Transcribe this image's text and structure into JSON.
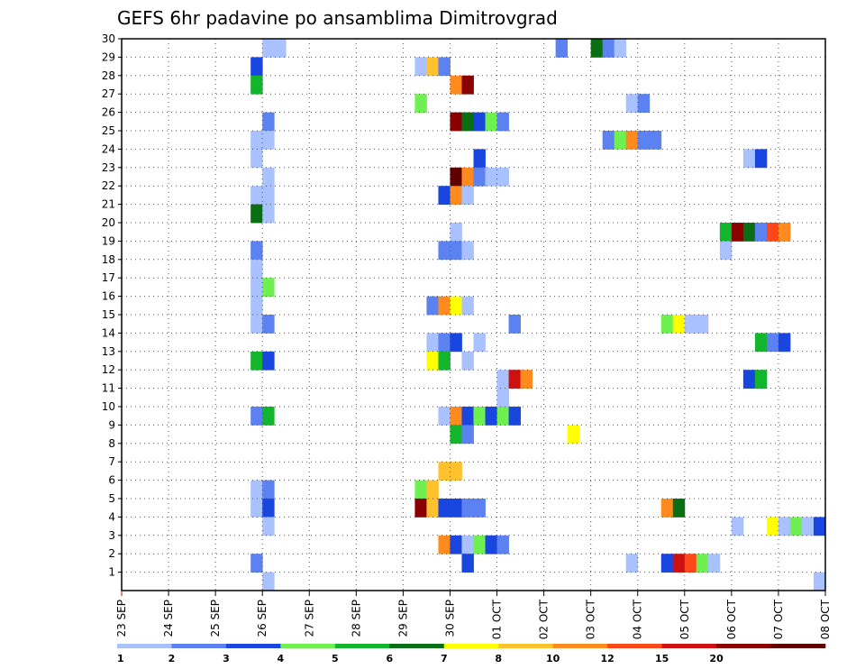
{
  "chart_data": {
    "type": "heatmap",
    "title": "GEFS 6hr padavine po ansamblima Dimitrovgrad",
    "x_tick_labels": [
      "23 SEP",
      "24 SEP",
      "25 SEP",
      "26 SEP",
      "27 SEP",
      "28 SEP",
      "29 SEP",
      "30 SEP",
      "01 OCT",
      "02 OCT",
      "03 OCT",
      "04 OCT",
      "05 OCT",
      "06 OCT",
      "07 OCT",
      "08 OCT"
    ],
    "y_tick_labels": [
      "1",
      "2",
      "3",
      "4",
      "5",
      "6",
      "7",
      "8",
      "9",
      "10",
      "11",
      "12",
      "13",
      "14",
      "15",
      "16",
      "17",
      "18",
      "19",
      "20",
      "21",
      "22",
      "23",
      "24",
      "25",
      "26",
      "27",
      "28",
      "29",
      "30"
    ],
    "x_unit": "6-hour step (4 steps per day, day 0 = 23 SEP)",
    "y_unit": "ensemble member",
    "ylim": [
      0,
      30
    ],
    "grid": true,
    "colorbar": {
      "placement": "bottom",
      "labels": [
        "1",
        "2",
        "3",
        "4",
        "5",
        "6",
        "7",
        "8",
        "10",
        "12",
        "15",
        "20"
      ],
      "colors": [
        "#a9c2ff",
        "#5b82f0",
        "#1a46e0",
        "#6ef050",
        "#12b52b",
        "#0a6e14",
        "#ffff00",
        "#ffc22e",
        "#ff8a1e",
        "#ff4718",
        "#d01010",
        "#8a0000",
        "#5e0000"
      ]
    },
    "cells": [
      [
        12,
        29,
        0
      ],
      [
        13,
        29,
        0
      ],
      [
        37,
        29,
        1
      ],
      [
        40,
        29,
        5
      ],
      [
        41,
        29,
        1
      ],
      [
        42,
        29,
        0
      ],
      [
        11,
        28,
        2
      ],
      [
        25,
        28,
        0
      ],
      [
        26,
        28,
        7
      ],
      [
        27,
        28,
        1
      ],
      [
        11,
        27,
        4
      ],
      [
        28,
        27,
        8
      ],
      [
        29,
        27,
        11
      ],
      [
        25,
        26,
        3
      ],
      [
        43,
        26,
        0
      ],
      [
        44,
        26,
        1
      ],
      [
        12,
        25,
        1
      ],
      [
        28,
        25,
        11
      ],
      [
        29,
        25,
        5
      ],
      [
        30,
        25,
        2
      ],
      [
        31,
        25,
        3
      ],
      [
        32,
        25,
        1
      ],
      [
        11,
        24,
        0
      ],
      [
        12,
        24,
        0
      ],
      [
        41,
        24,
        1
      ],
      [
        42,
        24,
        3
      ],
      [
        43,
        24,
        8
      ],
      [
        44,
        24,
        1
      ],
      [
        45,
        24,
        1
      ],
      [
        11,
        23,
        0
      ],
      [
        30,
        23,
        2
      ],
      [
        53,
        23,
        0
      ],
      [
        54,
        23,
        2
      ],
      [
        12,
        22,
        0
      ],
      [
        28,
        22,
        12
      ],
      [
        29,
        22,
        8
      ],
      [
        30,
        22,
        1
      ],
      [
        31,
        22,
        0
      ],
      [
        32,
        22,
        0
      ],
      [
        11,
        21,
        0
      ],
      [
        12,
        21,
        0
      ],
      [
        27,
        21,
        2
      ],
      [
        28,
        21,
        8
      ],
      [
        29,
        21,
        0
      ],
      [
        11,
        20,
        5
      ],
      [
        12,
        20,
        0
      ],
      [
        28,
        19,
        0
      ],
      [
        51,
        19,
        4
      ],
      [
        52,
        19,
        11
      ],
      [
        53,
        19,
        5
      ],
      [
        54,
        19,
        1
      ],
      [
        55,
        19,
        9
      ],
      [
        56,
        19,
        8
      ],
      [
        11,
        18,
        1
      ],
      [
        27,
        18,
        1
      ],
      [
        28,
        18,
        1
      ],
      [
        29,
        18,
        0
      ],
      [
        51,
        18,
        0
      ],
      [
        11,
        17,
        0
      ],
      [
        11,
        16,
        0
      ],
      [
        12,
        16,
        3
      ],
      [
        11,
        15,
        0
      ],
      [
        26,
        15,
        1
      ],
      [
        27,
        15,
        8
      ],
      [
        28,
        15,
        6
      ],
      [
        29,
        15,
        0
      ],
      [
        11,
        14,
        0
      ],
      [
        12,
        14,
        1
      ],
      [
        33,
        14,
        1
      ],
      [
        46,
        14,
        3
      ],
      [
        47,
        14,
        6
      ],
      [
        48,
        14,
        0
      ],
      [
        49,
        14,
        0
      ],
      [
        26,
        13,
        0
      ],
      [
        27,
        13,
        1
      ],
      [
        28,
        13,
        2
      ],
      [
        30,
        13,
        0
      ],
      [
        54,
        13,
        4
      ],
      [
        55,
        13,
        1
      ],
      [
        56,
        13,
        2
      ],
      [
        11,
        12,
        4
      ],
      [
        12,
        12,
        2
      ],
      [
        26,
        12,
        6
      ],
      [
        27,
        12,
        4
      ],
      [
        29,
        12,
        0
      ],
      [
        32,
        11,
        0
      ],
      [
        33,
        11,
        10
      ],
      [
        34,
        11,
        8
      ],
      [
        53,
        11,
        2
      ],
      [
        54,
        11,
        4
      ],
      [
        32,
        10,
        0
      ],
      [
        11,
        9,
        1
      ],
      [
        12,
        9,
        4
      ],
      [
        27,
        9,
        0
      ],
      [
        28,
        9,
        8
      ],
      [
        29,
        9,
        2
      ],
      [
        30,
        9,
        3
      ],
      [
        31,
        9,
        2
      ],
      [
        32,
        9,
        3
      ],
      [
        33,
        9,
        2
      ],
      [
        28,
        8,
        4
      ],
      [
        29,
        8,
        1
      ],
      [
        38,
        8,
        6
      ],
      [
        27,
        6,
        7
      ],
      [
        28,
        6,
        7
      ],
      [
        11,
        5,
        0
      ],
      [
        12,
        5,
        1
      ],
      [
        25,
        5,
        3
      ],
      [
        26,
        5,
        7
      ],
      [
        11,
        4,
        0
      ],
      [
        12,
        4,
        2
      ],
      [
        25,
        4,
        11
      ],
      [
        26,
        4,
        7
      ],
      [
        27,
        4,
        2
      ],
      [
        28,
        4,
        2
      ],
      [
        29,
        4,
        1
      ],
      [
        30,
        4,
        1
      ],
      [
        46,
        4,
        8
      ],
      [
        47,
        4,
        5
      ],
      [
        12,
        3,
        0
      ],
      [
        52,
        3,
        0
      ],
      [
        55,
        3,
        6
      ],
      [
        56,
        3,
        0
      ],
      [
        57,
        3,
        3
      ],
      [
        58,
        3,
        0
      ],
      [
        59,
        3,
        2
      ],
      [
        27,
        2,
        8
      ],
      [
        28,
        2,
        2
      ],
      [
        29,
        2,
        0
      ],
      [
        30,
        2,
        3
      ],
      [
        31,
        2,
        2
      ],
      [
        32,
        2,
        1
      ],
      [
        11,
        1,
        1
      ],
      [
        29,
        1,
        2
      ],
      [
        43,
        1,
        0
      ],
      [
        46,
        1,
        2
      ],
      [
        47,
        1,
        10
      ],
      [
        48,
        1,
        9
      ],
      [
        49,
        1,
        3
      ],
      [
        50,
        1,
        0
      ],
      [
        12,
        0,
        0
      ],
      [
        59,
        0,
        0
      ]
    ]
  }
}
